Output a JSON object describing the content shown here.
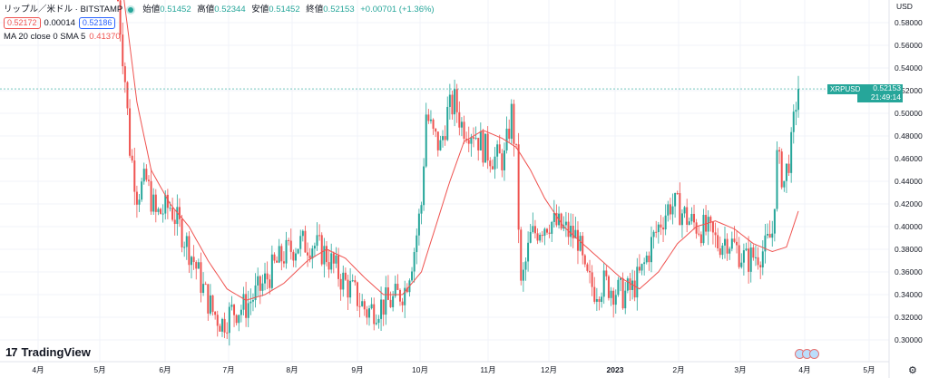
{
  "header": {
    "symbol_title": "リップル／米ドル · BITSTAMP",
    "ohlc": {
      "open_label": "始値",
      "open": "0.51452",
      "high_label": "高値",
      "high": "0.52344",
      "low_label": "安値",
      "low": "0.51452",
      "close_label": "終値",
      "close": "0.52153",
      "change": "+0.00701 (+1.36%)"
    },
    "bid": "0.52172",
    "spread": "0.00014",
    "ask": "0.52186",
    "indicator_label": "MA 20 close 0 SMA 5",
    "indicator_value": "0.41370"
  },
  "price_axis": {
    "currency": "USD",
    "ticks": [
      "0.58000",
      "0.56000",
      "0.54000",
      "0.52000",
      "0.50000",
      "0.48000",
      "0.46000",
      "0.44000",
      "0.42000",
      "0.40000",
      "0.38000",
      "0.36000",
      "0.34000",
      "0.32000",
      "0.30000"
    ]
  },
  "last_price": {
    "symbol": "XRPUSD",
    "price": "0.52153",
    "countdown": "21:49:14"
  },
  "brand": {
    "name": "TradingView"
  },
  "colors": {
    "up": "#26a69a",
    "down": "#ef5350",
    "ma": "#ef5350",
    "grid": "#f0f3fa"
  },
  "chart_data": {
    "type": "candlestick",
    "ylim": [
      0.285,
      0.615
    ],
    "x_ticks": [
      "4月",
      "5月",
      "6月",
      "7月",
      "8月",
      "9月",
      "10月",
      "11月",
      "12月",
      "2023",
      "2月",
      "3月",
      "4月",
      "5月"
    ],
    "ma_series_name": "MA 20 close 0 SMA 5",
    "close_anchors": [
      [
        0,
        0.6
      ],
      [
        3,
        0.53
      ],
      [
        5,
        0.47
      ],
      [
        8,
        0.43
      ],
      [
        12,
        0.44
      ],
      [
        16,
        0.41
      ],
      [
        22,
        0.418
      ],
      [
        27,
        0.395
      ],
      [
        32,
        0.37
      ],
      [
        36,
        0.345
      ],
      [
        40,
        0.325
      ],
      [
        44,
        0.315
      ],
      [
        48,
        0.325
      ],
      [
        54,
        0.33
      ],
      [
        60,
        0.345
      ],
      [
        66,
        0.365
      ],
      [
        70,
        0.375
      ],
      [
        76,
        0.385
      ],
      [
        82,
        0.385
      ],
      [
        88,
        0.375
      ],
      [
        94,
        0.355
      ],
      [
        100,
        0.34
      ],
      [
        105,
        0.325
      ],
      [
        110,
        0.33
      ],
      [
        116,
        0.335
      ],
      [
        121,
        0.345
      ],
      [
        125,
        0.38
      ],
      [
        128,
        0.42
      ],
      [
        130,
        0.5
      ],
      [
        133,
        0.48
      ],
      [
        136,
        0.47
      ],
      [
        139,
        0.5
      ],
      [
        142,
        0.51
      ],
      [
        145,
        0.49
      ],
      [
        150,
        0.485
      ],
      [
        154,
        0.47
      ],
      [
        159,
        0.46
      ],
      [
        163,
        0.46
      ],
      [
        166,
        0.5
      ],
      [
        168,
        0.46
      ],
      [
        170,
        0.345
      ],
      [
        174,
        0.39
      ],
      [
        178,
        0.4
      ],
      [
        182,
        0.405
      ],
      [
        186,
        0.4
      ],
      [
        190,
        0.395
      ],
      [
        194,
        0.39
      ],
      [
        197,
        0.355
      ],
      [
        201,
        0.345
      ],
      [
        205,
        0.35
      ],
      [
        209,
        0.345
      ],
      [
        213,
        0.34
      ],
      [
        217,
        0.345
      ],
      [
        221,
        0.36
      ],
      [
        225,
        0.385
      ],
      [
        229,
        0.405
      ],
      [
        233,
        0.42
      ],
      [
        237,
        0.415
      ],
      [
        241,
        0.405
      ],
      [
        245,
        0.4
      ],
      [
        249,
        0.395
      ],
      [
        253,
        0.385
      ],
      [
        257,
        0.39
      ],
      [
        261,
        0.38
      ],
      [
        265,
        0.37
      ],
      [
        269,
        0.375
      ],
      [
        273,
        0.38
      ],
      [
        276,
        0.395
      ],
      [
        278,
        0.46
      ],
      [
        281,
        0.44
      ],
      [
        284,
        0.47
      ],
      [
        286,
        0.51
      ],
      [
        287,
        0.5215
      ]
    ],
    "ma_anchors": [
      [
        2,
        0.61
      ],
      [
        8,
        0.51
      ],
      [
        14,
        0.45
      ],
      [
        22,
        0.42
      ],
      [
        30,
        0.4
      ],
      [
        38,
        0.37
      ],
      [
        46,
        0.345
      ],
      [
        54,
        0.335
      ],
      [
        62,
        0.34
      ],
      [
        70,
        0.35
      ],
      [
        80,
        0.37
      ],
      [
        88,
        0.38
      ],
      [
        96,
        0.372
      ],
      [
        104,
        0.355
      ],
      [
        112,
        0.34
      ],
      [
        120,
        0.34
      ],
      [
        128,
        0.36
      ],
      [
        134,
        0.4
      ],
      [
        140,
        0.44
      ],
      [
        146,
        0.475
      ],
      [
        154,
        0.485
      ],
      [
        162,
        0.478
      ],
      [
        168,
        0.47
      ],
      [
        174,
        0.45
      ],
      [
        180,
        0.425
      ],
      [
        188,
        0.4
      ],
      [
        196,
        0.385
      ],
      [
        204,
        0.37
      ],
      [
        212,
        0.355
      ],
      [
        220,
        0.345
      ],
      [
        228,
        0.36
      ],
      [
        236,
        0.385
      ],
      [
        244,
        0.4
      ],
      [
        252,
        0.405
      ],
      [
        260,
        0.398
      ],
      [
        268,
        0.385
      ],
      [
        276,
        0.378
      ],
      [
        282,
        0.382
      ],
      [
        287,
        0.4137
      ]
    ]
  }
}
